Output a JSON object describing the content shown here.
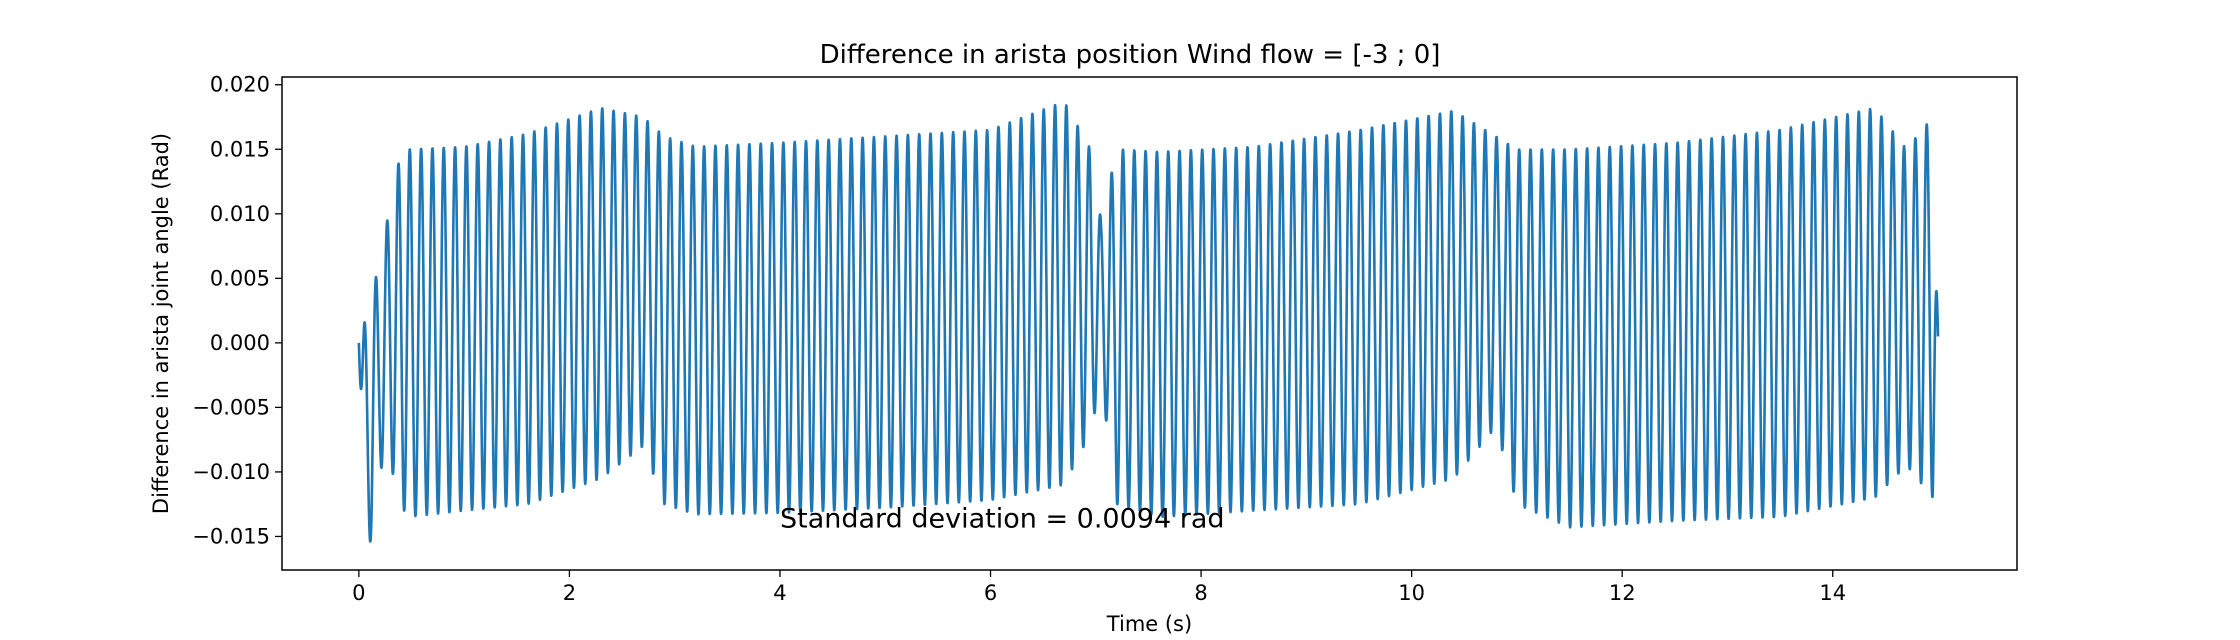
{
  "chart_data": {
    "type": "line",
    "title": "Difference in arista position Wind flow = [-3 ; 0]",
    "xlabel": "Time (s)",
    "ylabel": "Difference in arista joint angle (Rad)",
    "xlim": [
      -0.73,
      15.75
    ],
    "ylim": [
      -0.0176,
      0.0206
    ],
    "xticks": [
      0,
      2,
      4,
      6,
      8,
      10,
      12,
      14
    ],
    "xtick_labels": [
      "0",
      "2",
      "4",
      "6",
      "8",
      "10",
      "12",
      "14"
    ],
    "yticks": [
      -0.015,
      -0.01,
      -0.005,
      0.0,
      0.005,
      0.01,
      0.015,
      0.02
    ],
    "ytick_labels": [
      "−0.015",
      "−0.010",
      "−0.005",
      "0.000",
      "0.005",
      "0.010",
      "0.015",
      "0.020"
    ],
    "grid": false,
    "annotation": {
      "text": "Standard deviation = 0.0094 rad",
      "x": 4.0,
      "y": -0.0143
    },
    "line_color": "#1f77b4",
    "series": [
      {
        "oscillation_frequency_hz": 9.3,
        "envelope": [
          {
            "t": 0.0,
            "max": 0.0,
            "min": 0.0
          },
          {
            "t": 0.05,
            "max": 0.0015,
            "min": -0.0135
          },
          {
            "t": 0.12,
            "max": 0.003,
            "min": -0.0158
          },
          {
            "t": 0.2,
            "max": 0.007,
            "min": -0.01
          },
          {
            "t": 0.27,
            "max": 0.0095,
            "min": -0.0085
          },
          {
            "t": 0.35,
            "max": 0.0135,
            "min": -0.011
          },
          {
            "t": 0.45,
            "max": 0.015,
            "min": -0.0135
          },
          {
            "t": 1.0,
            "max": 0.0152,
            "min": -0.013
          },
          {
            "t": 1.6,
            "max": 0.0162,
            "min": -0.0125
          },
          {
            "t": 2.3,
            "max": 0.0182,
            "min": -0.0105
          },
          {
            "t": 2.7,
            "max": 0.0175,
            "min": -0.008
          },
          {
            "t": 2.9,
            "max": 0.016,
            "min": -0.0125
          },
          {
            "t": 3.2,
            "max": 0.0152,
            "min": -0.0133
          },
          {
            "t": 4.0,
            "max": 0.0155,
            "min": -0.0132
          },
          {
            "t": 5.0,
            "max": 0.016,
            "min": -0.0128
          },
          {
            "t": 6.0,
            "max": 0.0165,
            "min": -0.0122
          },
          {
            "t": 6.7,
            "max": 0.0187,
            "min": -0.011
          },
          {
            "t": 6.95,
            "max": 0.015,
            "min": -0.007
          },
          {
            "t": 7.05,
            "max": 0.0095,
            "min": -0.003
          },
          {
            "t": 7.2,
            "max": 0.015,
            "min": -0.0125
          },
          {
            "t": 7.6,
            "max": 0.0148,
            "min": -0.0135
          },
          {
            "t": 8.5,
            "max": 0.0152,
            "min": -0.013
          },
          {
            "t": 9.5,
            "max": 0.0165,
            "min": -0.0125
          },
          {
            "t": 10.4,
            "max": 0.018,
            "min": -0.0105
          },
          {
            "t": 10.8,
            "max": 0.016,
            "min": -0.0065
          },
          {
            "t": 11.0,
            "max": 0.015,
            "min": -0.0125
          },
          {
            "t": 11.5,
            "max": 0.015,
            "min": -0.0143
          },
          {
            "t": 12.5,
            "max": 0.0155,
            "min": -0.0138
          },
          {
            "t": 13.5,
            "max": 0.0165,
            "min": -0.0135
          },
          {
            "t": 14.4,
            "max": 0.0182,
            "min": -0.012
          },
          {
            "t": 14.7,
            "max": 0.015,
            "min": -0.0095
          },
          {
            "t": 14.95,
            "max": 0.0175,
            "min": -0.012
          },
          {
            "t": 15.0,
            "max": 0.0005,
            "min": 0.0005
          }
        ]
      }
    ]
  }
}
